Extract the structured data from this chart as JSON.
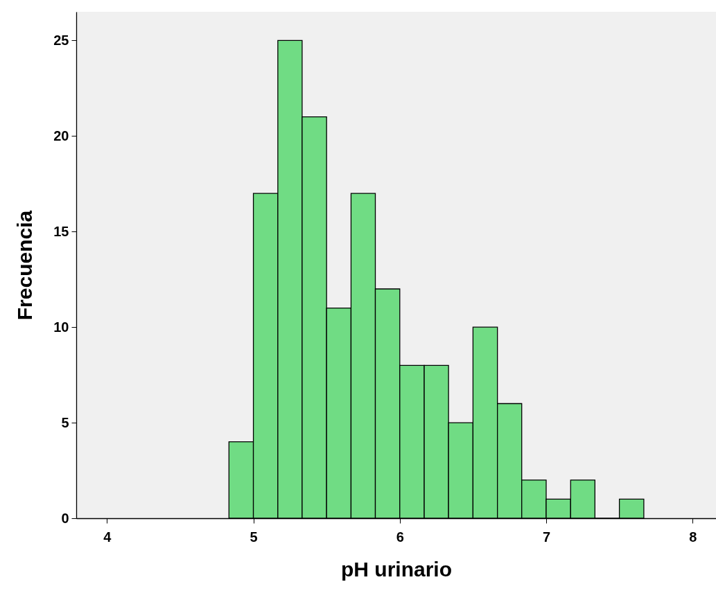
{
  "chart_data": {
    "type": "histogram",
    "xlabel": "pH urinario",
    "ylabel": "Frecuencia",
    "bins": [
      4.833,
      5.0,
      5.167,
      5.333,
      5.5,
      5.667,
      5.833,
      6.0,
      6.167,
      6.333,
      6.5,
      6.667,
      6.833,
      7.0,
      7.167,
      7.333,
      7.5,
      7.667
    ],
    "values": [
      4,
      17,
      25,
      21,
      11,
      17,
      12,
      8,
      8,
      5,
      10,
      6,
      2,
      1,
      2,
      0,
      1
    ],
    "color": "#70dc84",
    "xlim": [
      3.79,
      8.16
    ],
    "ylim": [
      0,
      26.5
    ],
    "xticks": [
      4,
      5,
      6,
      7,
      8
    ],
    "yticks": [
      0,
      5,
      10,
      15,
      20,
      25
    ]
  }
}
